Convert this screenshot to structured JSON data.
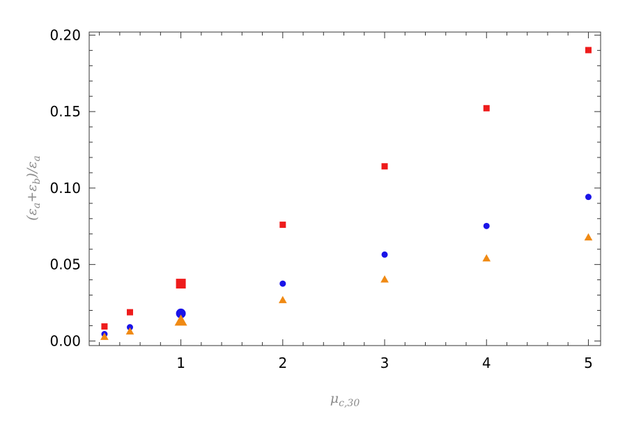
{
  "chart_data": {
    "type": "scatter",
    "title": "",
    "xlabel": "μ",
    "xlabel_sub": "c,30",
    "ylabel_parts": [
      "(ε",
      "a",
      "+ε",
      "b",
      ")/ε",
      "a"
    ],
    "xlim": [
      0.1,
      5.12
    ],
    "ylim": [
      -0.003,
      0.202
    ],
    "x_ticks": [
      1,
      2,
      3,
      4,
      5
    ],
    "y_ticks": [
      0.0,
      0.05,
      0.1,
      0.15,
      0.2
    ],
    "y_tick_labels": [
      "0.00",
      "0.05",
      "0.10",
      "0.15",
      "0.20"
    ],
    "grid": false,
    "legend": "none",
    "series": [
      {
        "marker": "square",
        "color": "#ee1c1c",
        "x": [
          0.25,
          0.5,
          1,
          2,
          3,
          4,
          5
        ],
        "y": [
          0.0095,
          0.0188,
          0.0375,
          0.076,
          0.1142,
          0.1522,
          0.1902
        ],
        "highlight_x": 1
      },
      {
        "marker": "circle",
        "color": "#1a14e8",
        "x": [
          0.25,
          0.5,
          1,
          2,
          3,
          4,
          5
        ],
        "y": [
          0.0045,
          0.009,
          0.018,
          0.0375,
          0.0565,
          0.0752,
          0.0942
        ],
        "highlight_x": 1
      },
      {
        "marker": "triangle",
        "color": "#f08a14",
        "x": [
          0.25,
          0.5,
          1,
          2,
          3,
          4,
          5
        ],
        "y": [
          0.0025,
          0.006,
          0.0128,
          0.0265,
          0.04,
          0.0538,
          0.0675
        ],
        "highlight_x": 1
      }
    ]
  }
}
